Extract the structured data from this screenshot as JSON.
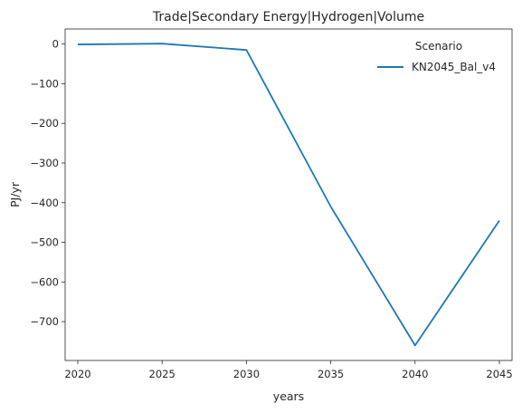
{
  "chart_data": {
    "type": "line",
    "title": "Trade|Secondary Energy|Hydrogen|Volume",
    "xlabel": "years",
    "ylabel": "PJ/yr",
    "x": [
      2020,
      2025,
      2030,
      2035,
      2040,
      2045
    ],
    "series": [
      {
        "name": "KN2045_Bal_v4",
        "values": [
          -1,
          1,
          -15,
          -410,
          -760,
          -445
        ],
        "color": "#1f77b4"
      }
    ],
    "xticks": [
      "2020",
      "2025",
      "2030",
      "2035",
      "2040",
      "2045"
    ],
    "yticks": [
      "0",
      "−100",
      "−200",
      "−300",
      "−400",
      "−500",
      "−600",
      "−700"
    ],
    "ytick_values": [
      0,
      -100,
      -200,
      -300,
      -400,
      -500,
      -600,
      -700
    ],
    "xlim": [
      2019.25,
      2045.75
    ],
    "ylim": [
      -798,
      38
    ],
    "legend": {
      "title": "Scenario",
      "placement": "top-right"
    },
    "grid": false
  }
}
